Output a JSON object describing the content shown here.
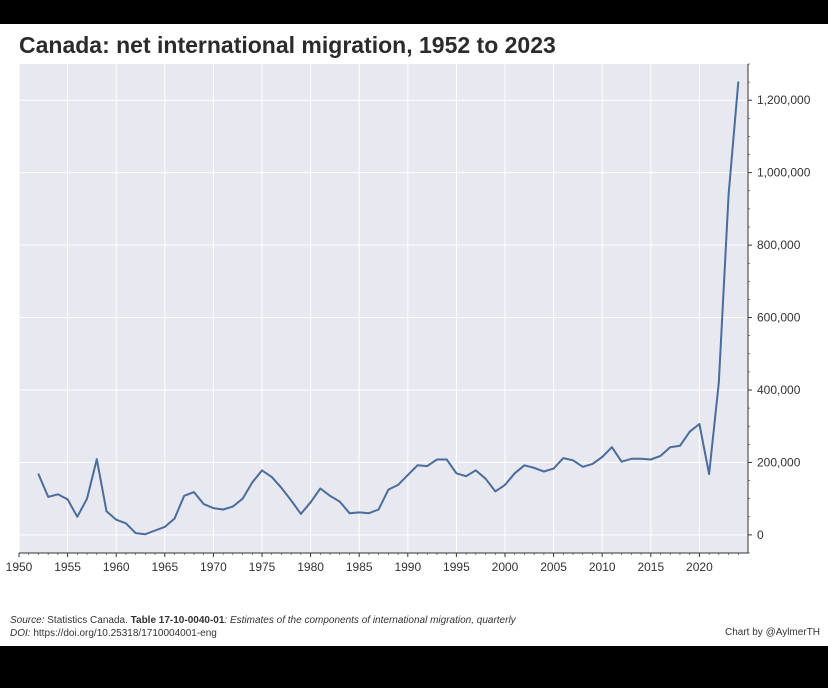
{
  "title": "Canada: net international migration, 1952 to 2023",
  "footer": {
    "source_label": "Source:",
    "source_org": "Statistics Canada.",
    "table_id": "Table 17-10-0040-01",
    "table_desc": ": Estimates of the components of international migration, quarterly",
    "doi_label": "DOI:",
    "doi_url": "https://doi.org/10.25318/1710004001-eng",
    "credit": "Chart by @AylmerTH"
  },
  "colors": {
    "line": "#4a6d9c",
    "plot_background": "#e8e8f0",
    "grid": "#ffffff",
    "page_background": "#000000"
  },
  "chart_data": {
    "type": "line",
    "title": "Canada: net international migration, 1952 to 2023",
    "xlabel": "",
    "ylabel": "",
    "xlim": [
      1950,
      2025
    ],
    "ylim": [
      -50000,
      1300000
    ],
    "xticks": [
      1950,
      1955,
      1960,
      1965,
      1970,
      1975,
      1980,
      1985,
      1990,
      1995,
      2000,
      2005,
      2010,
      2015,
      2020
    ],
    "yticks": [
      0,
      200000,
      400000,
      600000,
      800000,
      1000000,
      1200000
    ],
    "ytick_labels": [
      "0",
      "200,000",
      "400,000",
      "600,000",
      "800,000",
      "1,000,000",
      "1,200,000"
    ],
    "y_axis_position": "right",
    "grid": true,
    "series": [
      {
        "x": [
          1952,
          1953,
          1954,
          1955,
          1956,
          1957,
          1958,
          1959,
          1960,
          1961,
          1962,
          1963,
          1964,
          1965,
          1966,
          1967,
          1968,
          1969,
          1970,
          1971,
          1972,
          1973,
          1974,
          1975,
          1976,
          1977,
          1978,
          1979,
          1980,
          1981,
          1982,
          1983,
          1984,
          1985,
          1986,
          1987,
          1988,
          1989,
          1990,
          1991,
          1992,
          1993,
          1994,
          1995,
          1996,
          1997,
          1998,
          1999,
          2000,
          2001,
          2002,
          2003,
          2004,
          2005,
          2006,
          2007,
          2008,
          2009,
          2010,
          2011,
          2012,
          2013,
          2014,
          2015,
          2016,
          2017,
          2018,
          2019,
          2020,
          2021,
          2022,
          2023,
          2024
        ],
        "values": [
          168000,
          105000,
          112000,
          98000,
          50000,
          100000,
          209000,
          65000,
          42000,
          32000,
          5000,
          2000,
          12000,
          22000,
          45000,
          108000,
          118000,
          85000,
          74000,
          70000,
          78000,
          100000,
          145000,
          178000,
          160000,
          130000,
          95000,
          58000,
          90000,
          128000,
          108000,
          92000,
          60000,
          62000,
          60000,
          70000,
          125000,
          138000,
          165000,
          192000,
          190000,
          208000,
          208000,
          170000,
          162000,
          178000,
          155000,
          120000,
          138000,
          170000,
          192000,
          185000,
          175000,
          183000,
          212000,
          206000,
          188000,
          196000,
          215000,
          242000,
          202000,
          210000,
          210000,
          208000,
          218000,
          242000,
          246000,
          285000,
          306000,
          168000,
          420000,
          940000,
          1250000
        ]
      }
    ]
  }
}
